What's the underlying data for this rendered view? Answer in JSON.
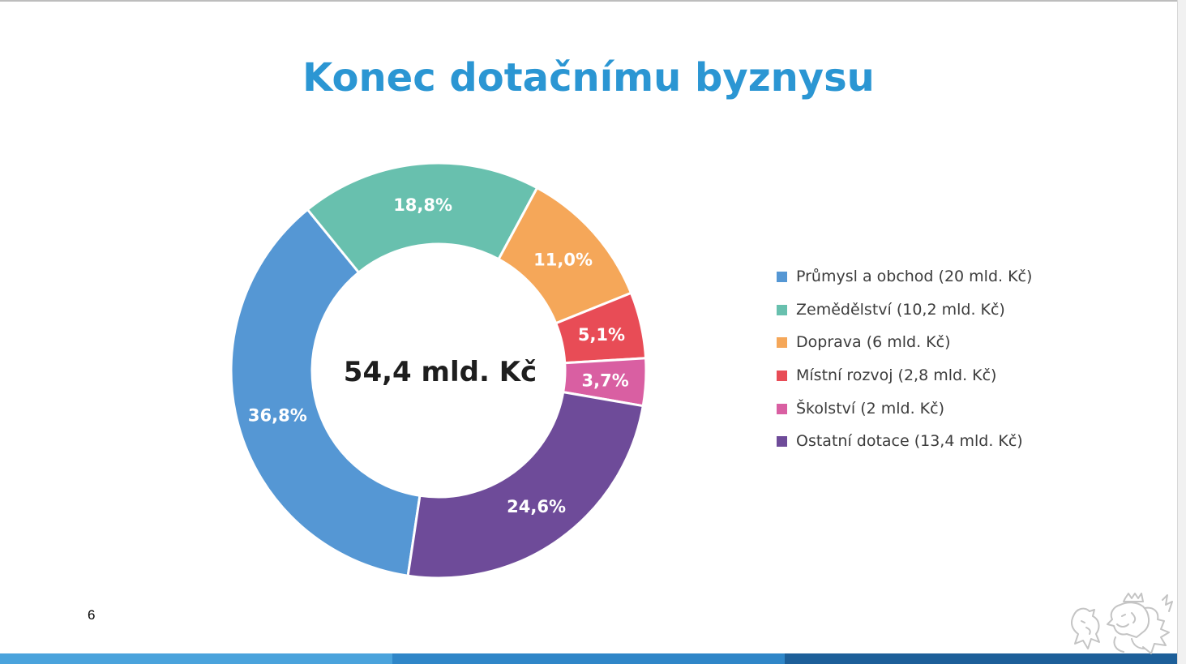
{
  "slide": {
    "title": "Konec dotačnímu byznysu",
    "page_number": "6"
  },
  "chart_data": {
    "type": "pie",
    "donut": true,
    "center_label": "54,4 mld. Kč",
    "legend_position": "right",
    "slices": [
      {
        "name": "Průmysl a obchod (20 mld. Kč)",
        "value": 20.0,
        "label": "36,8%",
        "color": "#5597d4"
      },
      {
        "name": "Zemědělství (10,2 mld. Kč)",
        "value": 10.2,
        "label": "18,8%",
        "color": "#68c0ae"
      },
      {
        "name": "Doprava (6 mld. Kč)",
        "value": 6.0,
        "label": "11,0%",
        "color": "#f5a759"
      },
      {
        "name": "Místní rozvoj (2,8 mld. Kč)",
        "value": 2.8,
        "label": "5,1%",
        "color": "#e84c56"
      },
      {
        "name": "Školství (2 mld. Kč)",
        "value": 2.0,
        "label": "3,7%",
        "color": "#d95fa2"
      },
      {
        "name": "Ostatní dotace (13,4 mld. Kč)",
        "value": 13.4,
        "label": "24,6%",
        "color": "#6e4b99"
      }
    ]
  },
  "colors": {
    "title": "#2b96d3",
    "footer": [
      "#4aa3dc",
      "#2f86c8",
      "#1d5f99"
    ]
  },
  "icons": {
    "logo": "czech-lion-logo"
  }
}
